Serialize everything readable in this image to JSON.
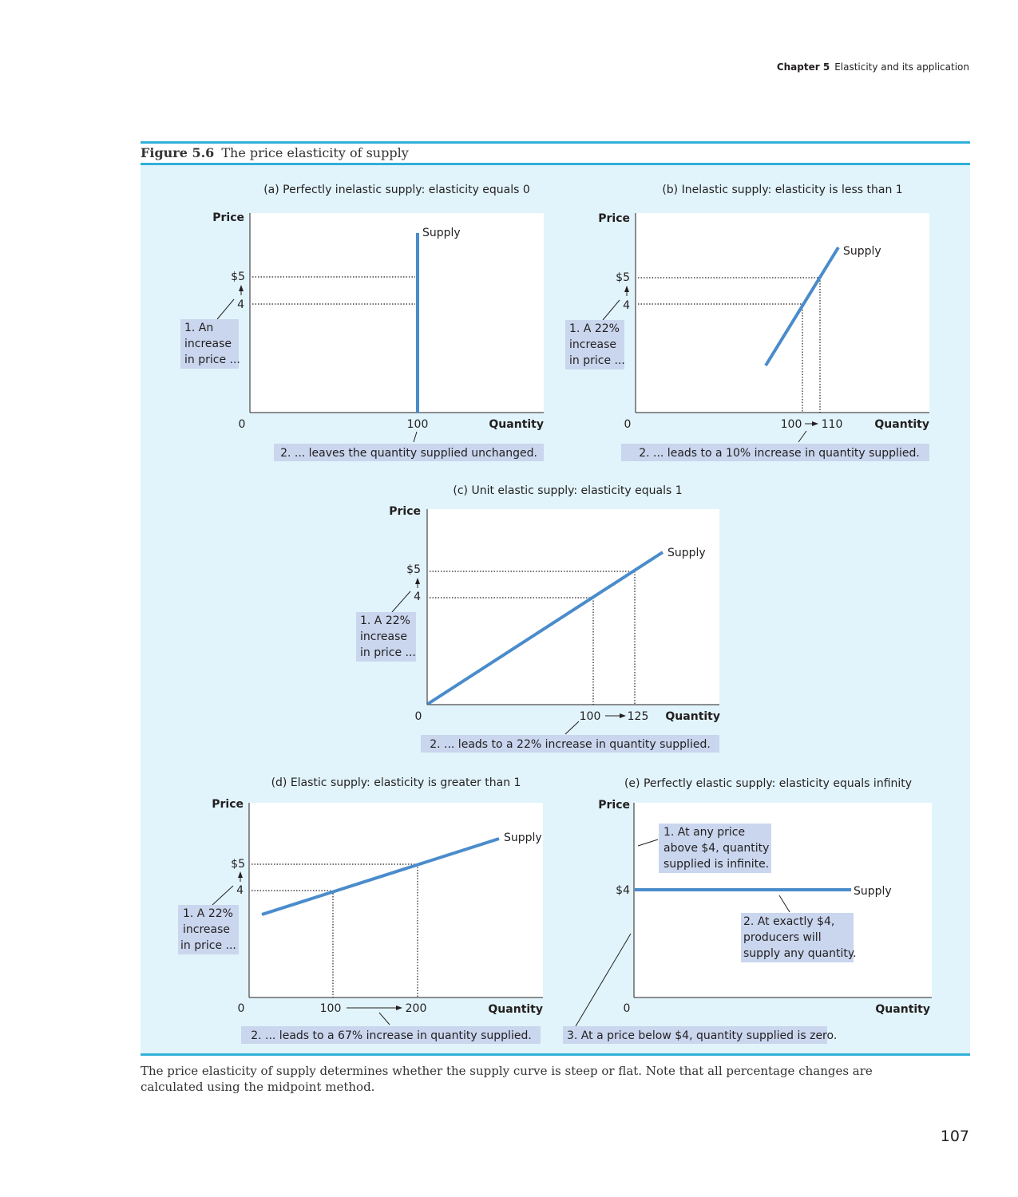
{
  "header": {
    "chapter": "Chapter 5",
    "title": "Elasticity and its application"
  },
  "figure": {
    "label": "Figure 5.6",
    "title": "The price elasticity of supply"
  },
  "axis": {
    "price": "Price",
    "quantity": "Quantity",
    "zero": "0",
    "curve": "Supply"
  },
  "panels": {
    "a": {
      "title": "(a) Perfectly inelastic supply: elasticity equals 0",
      "p_hi": "$5",
      "p_lo": "4",
      "q": "100",
      "note1": [
        "1. An",
        "increase",
        "in price ..."
      ],
      "note2": "2. ... leaves the quantity supplied unchanged."
    },
    "b": {
      "title": "(b) Inelastic supply: elasticity is less than 1",
      "p_hi": "$5",
      "p_lo": "4",
      "q_lo": "100",
      "q_hi": "110",
      "note1": [
        "1. A 22%",
        "increase",
        "in price ..."
      ],
      "note2": "2. ... leads to a 10% increase in quantity supplied."
    },
    "c": {
      "title": "(c) Unit elastic supply: elasticity equals 1",
      "p_hi": "$5",
      "p_lo": "4",
      "q_lo": "100",
      "q_hi": "125",
      "note1": [
        "1. A 22%",
        "increase",
        "in price ..."
      ],
      "note2": "2. ... leads to a 22% increase in quantity supplied."
    },
    "d": {
      "title": "(d) Elastic supply: elasticity is greater than 1",
      "p_hi": "$5",
      "p_lo": "4",
      "q_lo": "100",
      "q_hi": "200",
      "note1": [
        "1. A 22%",
        "increase",
        "in price ..."
      ],
      "note2": "2. ... leads to a 67% increase in quantity supplied."
    },
    "e": {
      "title": "(e) Perfectly elastic supply: elasticity equals infinity",
      "p": "$4",
      "note1": [
        "1. At any price",
        "above $4, quantity",
        "supplied is infinite."
      ],
      "note2": [
        "2. At exactly $4,",
        "producers will",
        "supply any quantity."
      ],
      "note3": "3. At a price below $4, quantity supplied is zero."
    }
  },
  "caption": "The price elasticity of supply determines whether the supply curve is steep or flat. Note that all percentage changes are calculated using the midpoint method.",
  "page_number": "107",
  "colors": {
    "rule": "#30b0d9",
    "panel_bg": "#e1f4fb",
    "curve": "#4a8ccb",
    "note_bg": "#c9d6ee"
  }
}
